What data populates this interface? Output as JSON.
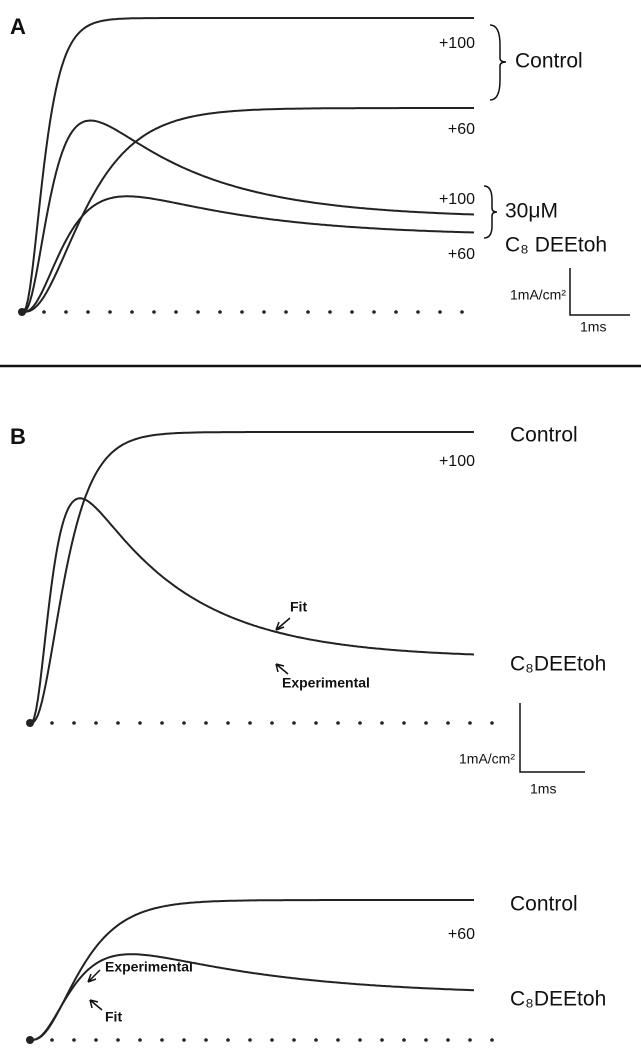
{
  "panel_a": {
    "label": "A",
    "control_100": "+100",
    "control_60": "+60",
    "control": "Control",
    "drug_100": "+100",
    "drug_60": "+60",
    "drug_conc": "30μM",
    "drug_name": "C₈ DEEtoh",
    "scale_current": "1mA/cm²",
    "scale_time": "1ms"
  },
  "panel_b": {
    "label": "B",
    "top": {
      "control": "Control",
      "control_potential": "+100",
      "fit": "Fit",
      "experimental": "Experimental",
      "drug_name": "C₈DEEtoh"
    },
    "scale_current": "1mA/cm²",
    "scale_time": "1ms",
    "bottom": {
      "control": "Control",
      "control_potential": "+60",
      "experimental": "Experimental",
      "fit": "Fit",
      "drug_name": "C₈DEEtoh"
    }
  }
}
